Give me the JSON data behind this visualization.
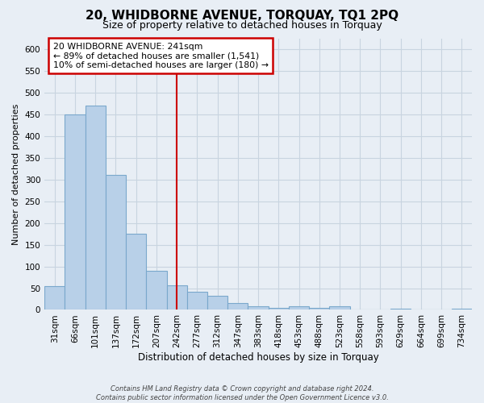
{
  "title": "20, WHIDBORNE AVENUE, TORQUAY, TQ1 2PQ",
  "subtitle": "Size of property relative to detached houses in Torquay",
  "xlabel": "Distribution of detached houses by size in Torquay",
  "ylabel": "Number of detached properties",
  "categories": [
    "31sqm",
    "66sqm",
    "101sqm",
    "137sqm",
    "172sqm",
    "207sqm",
    "242sqm",
    "277sqm",
    "312sqm",
    "347sqm",
    "383sqm",
    "418sqm",
    "453sqm",
    "488sqm",
    "523sqm",
    "558sqm",
    "593sqm",
    "629sqm",
    "664sqm",
    "699sqm",
    "734sqm"
  ],
  "values": [
    55,
    450,
    470,
    310,
    175,
    90,
    57,
    42,
    32,
    15,
    8,
    5,
    8,
    5,
    8,
    1,
    1,
    3,
    1,
    0,
    2
  ],
  "bar_color": "#b8d0e8",
  "bar_edge_color": "#7aa8cc",
  "marker_index": 6,
  "marker_line_color": "#cc0000",
  "annotation_line1": "20 WHIDBORNE AVENUE: 241sqm",
  "annotation_line2": "← 89% of detached houses are smaller (1,541)",
  "annotation_line3": "10% of semi-detached houses are larger (180) →",
  "annotation_box_facecolor": "#ffffff",
  "annotation_box_edgecolor": "#cc0000",
  "ylim": [
    0,
    625
  ],
  "yticks": [
    0,
    50,
    100,
    150,
    200,
    250,
    300,
    350,
    400,
    450,
    500,
    550,
    600
  ],
  "background_color": "#e8eef5",
  "plot_bg_color": "#e8eef5",
  "grid_color": "#c8d4e0",
  "footer_line1": "Contains HM Land Registry data © Crown copyright and database right 2024.",
  "footer_line2": "Contains public sector information licensed under the Open Government Licence v3.0.",
  "title_fontsize": 11,
  "subtitle_fontsize": 9,
  "xlabel_fontsize": 8.5,
  "ylabel_fontsize": 8,
  "tick_fontsize": 7.5,
  "annotation_fontsize": 7.8,
  "footer_fontsize": 6
}
